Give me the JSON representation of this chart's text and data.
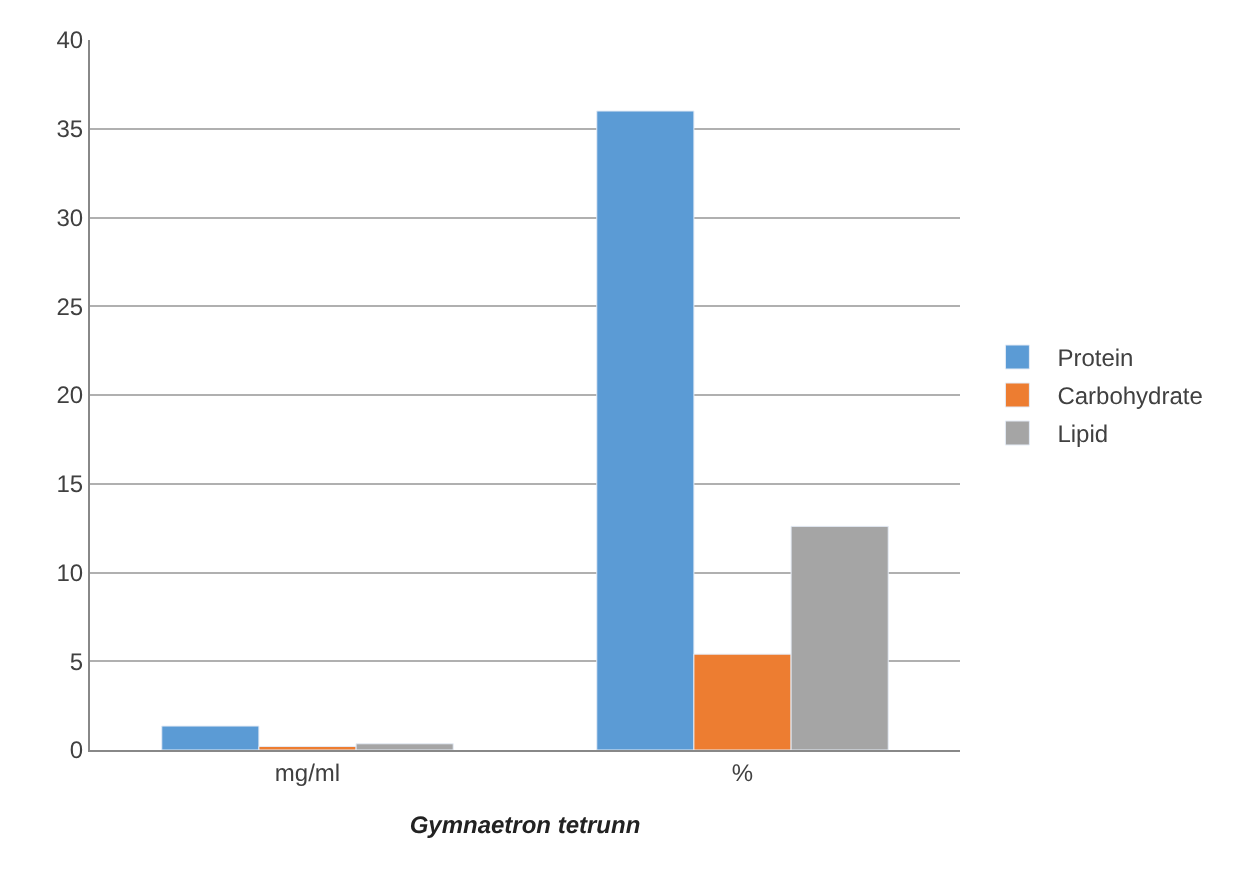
{
  "chart_data": {
    "type": "bar",
    "xlabel": "Gymnaetron tetrunn",
    "categories": [
      "mg/ml",
      "%"
    ],
    "series": [
      {
        "name": "Protein",
        "color": "#5b9bd5",
        "values": [
          1.35,
          36.0
        ]
      },
      {
        "name": "Carbohydrate",
        "color": "#ed7d31",
        "values": [
          0.2,
          5.4
        ]
      },
      {
        "name": "Lipid",
        "color": "#a5a5a5",
        "values": [
          0.35,
          12.6
        ]
      }
    ],
    "ylim": [
      0,
      40
    ],
    "yticks": [
      0,
      5,
      10,
      15,
      20,
      25,
      30,
      35,
      40
    ],
    "grid": "y",
    "legend": "right"
  }
}
